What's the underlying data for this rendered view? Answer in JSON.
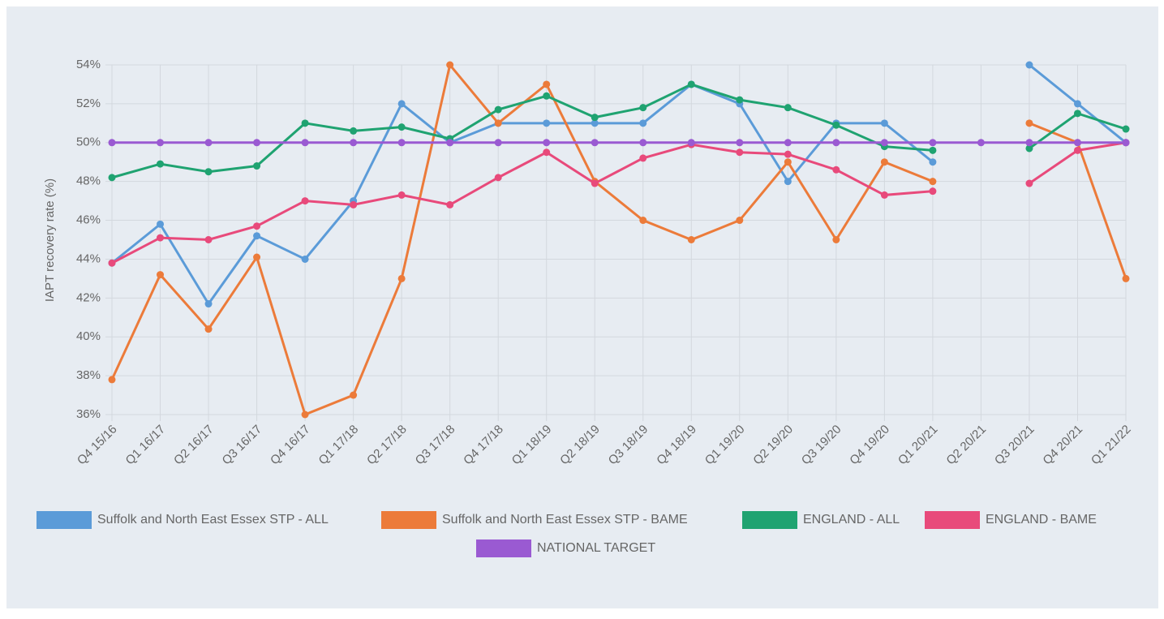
{
  "chart_data": {
    "type": "line",
    "y_label": "IAPT recovery rate (%)",
    "categories": [
      "Q4 15/16",
      "Q1 16/17",
      "Q2 16/17",
      "Q3 16/17",
      "Q4 16/17",
      "Q1 17/18",
      "Q2 17/18",
      "Q3 17/18",
      "Q4 17/18",
      "Q1 18/19",
      "Q2 18/19",
      "Q3 18/19",
      "Q4 18/19",
      "Q1 19/20",
      "Q2 19/20",
      "Q3 19/20",
      "Q4 19/20",
      "Q1 20/21",
      "Q2 20/21",
      "Q3 20/21",
      "Q4 20/21",
      "Q1 21/22"
    ],
    "series": [
      {
        "name": "Suffolk and North East Essex STP - ALL",
        "color": "#5b9bd8",
        "values": [
          43.8,
          45.8,
          41.7,
          45.2,
          44.0,
          47.0,
          52.0,
          50.0,
          51.0,
          51.0,
          51.0,
          51.0,
          53.0,
          52.0,
          48.0,
          51.0,
          51.0,
          49.0,
          null,
          54.0,
          52.0,
          50.0
        ]
      },
      {
        "name": "Suffolk and North East Essex STP - BAME",
        "color": "#ec7b3a",
        "values": [
          37.8,
          43.2,
          40.4,
          44.1,
          36.0,
          37.0,
          43.0,
          54.0,
          51.0,
          53.0,
          48.0,
          46.0,
          45.0,
          46.0,
          49.0,
          45.0,
          49.0,
          48.0,
          null,
          51.0,
          50.0,
          43.0
        ]
      },
      {
        "name": "ENGLAND - ALL",
        "color": "#1fa371",
        "values": [
          48.2,
          48.9,
          48.5,
          48.8,
          51.0,
          50.6,
          50.8,
          50.2,
          51.7,
          52.4,
          51.3,
          51.8,
          53.0,
          52.2,
          51.8,
          50.9,
          49.8,
          49.6,
          null,
          49.7,
          51.5,
          50.7
        ]
      },
      {
        "name": "ENGLAND - BAME",
        "color": "#e84a7b",
        "values": [
          43.8,
          45.1,
          45.0,
          45.7,
          47.0,
          46.8,
          47.3,
          46.8,
          48.2,
          49.5,
          47.9,
          49.2,
          49.9,
          49.5,
          49.4,
          48.6,
          47.3,
          47.5,
          null,
          47.9,
          49.6,
          50.0
        ]
      },
      {
        "name": "NATIONAL TARGET",
        "color": "#9a5ad2",
        "values": [
          50,
          50,
          50,
          50,
          50,
          50,
          50,
          50,
          50,
          50,
          50,
          50,
          50,
          50,
          50,
          50,
          50,
          50,
          50,
          50,
          50,
          50
        ]
      }
    ],
    "ylim": [
      36,
      54
    ],
    "yticks": [
      {
        "value": 36,
        "label": "36%"
      },
      {
        "value": 38,
        "label": "38%"
      },
      {
        "value": 40,
        "label": "40%"
      },
      {
        "value": 42,
        "label": "42%"
      },
      {
        "value": 44,
        "label": "44%"
      },
      {
        "value": 46,
        "label": "46%"
      },
      {
        "value": 48,
        "label": "48%"
      },
      {
        "value": 50,
        "label": "50%"
      },
      {
        "value": 52,
        "label": "52%"
      },
      {
        "value": 54,
        "label": "54%"
      }
    ],
    "grid": true
  }
}
